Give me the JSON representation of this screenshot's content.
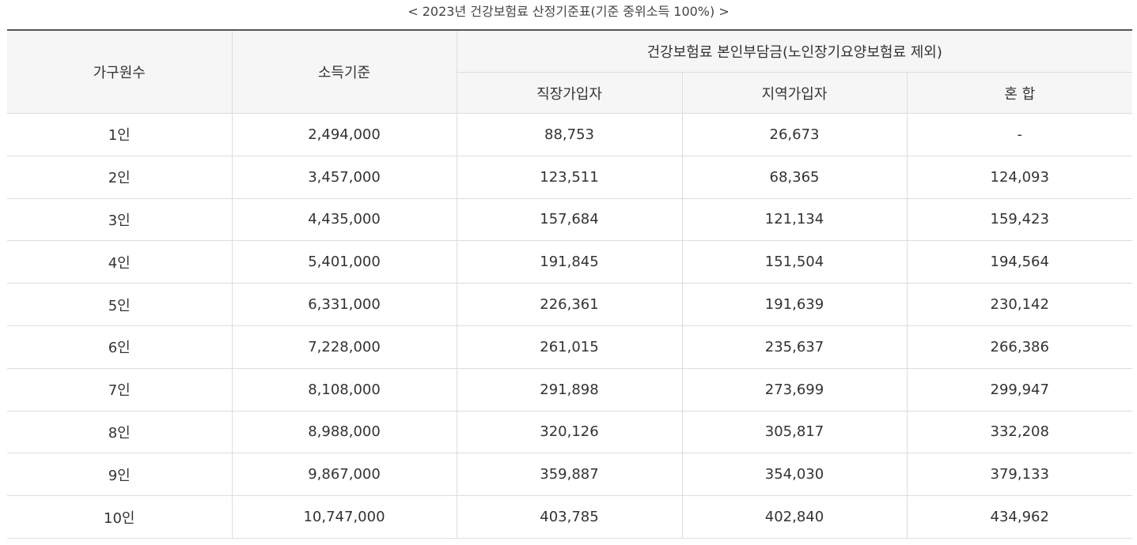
{
  "caption": "< 2023년 건강보험료 산정기준표(기준 중위소득 100%) >",
  "headers": {
    "household": "가구원수",
    "income": "소득기준",
    "group": "건강보험료 본인부담금(노인장기요양보험료 제외)",
    "workplace": "직장가입자",
    "regional": "지역가입자",
    "mixed": "혼 합"
  },
  "rows": [
    {
      "household": "1인",
      "income": "2,494,000",
      "workplace": "88,753",
      "regional": "26,673",
      "mixed": "-"
    },
    {
      "household": "2인",
      "income": "3,457,000",
      "workplace": "123,511",
      "regional": "68,365",
      "mixed": "124,093"
    },
    {
      "household": "3인",
      "income": "4,435,000",
      "workplace": "157,684",
      "regional": "121,134",
      "mixed": "159,423"
    },
    {
      "household": "4인",
      "income": "5,401,000",
      "workplace": "191,845",
      "regional": "151,504",
      "mixed": "194,564"
    },
    {
      "household": "5인",
      "income": "6,331,000",
      "workplace": "226,361",
      "regional": "191,639",
      "mixed": "230,142"
    },
    {
      "household": "6인",
      "income": "7,228,000",
      "workplace": "261,015",
      "regional": "235,637",
      "mixed": "266,386"
    },
    {
      "household": "7인",
      "income": "8,108,000",
      "workplace": "291,898",
      "regional": "273,699",
      "mixed": "299,947"
    },
    {
      "household": "8인",
      "income": "8,988,000",
      "workplace": "320,126",
      "regional": "305,817",
      "mixed": "332,208"
    },
    {
      "household": "9인",
      "income": "9,867,000",
      "workplace": "359,887",
      "regional": "354,030",
      "mixed": "379,133"
    },
    {
      "household": "10인",
      "income": "10,747,000",
      "workplace": "403,785",
      "regional": "402,840",
      "mixed": "434,962"
    }
  ]
}
